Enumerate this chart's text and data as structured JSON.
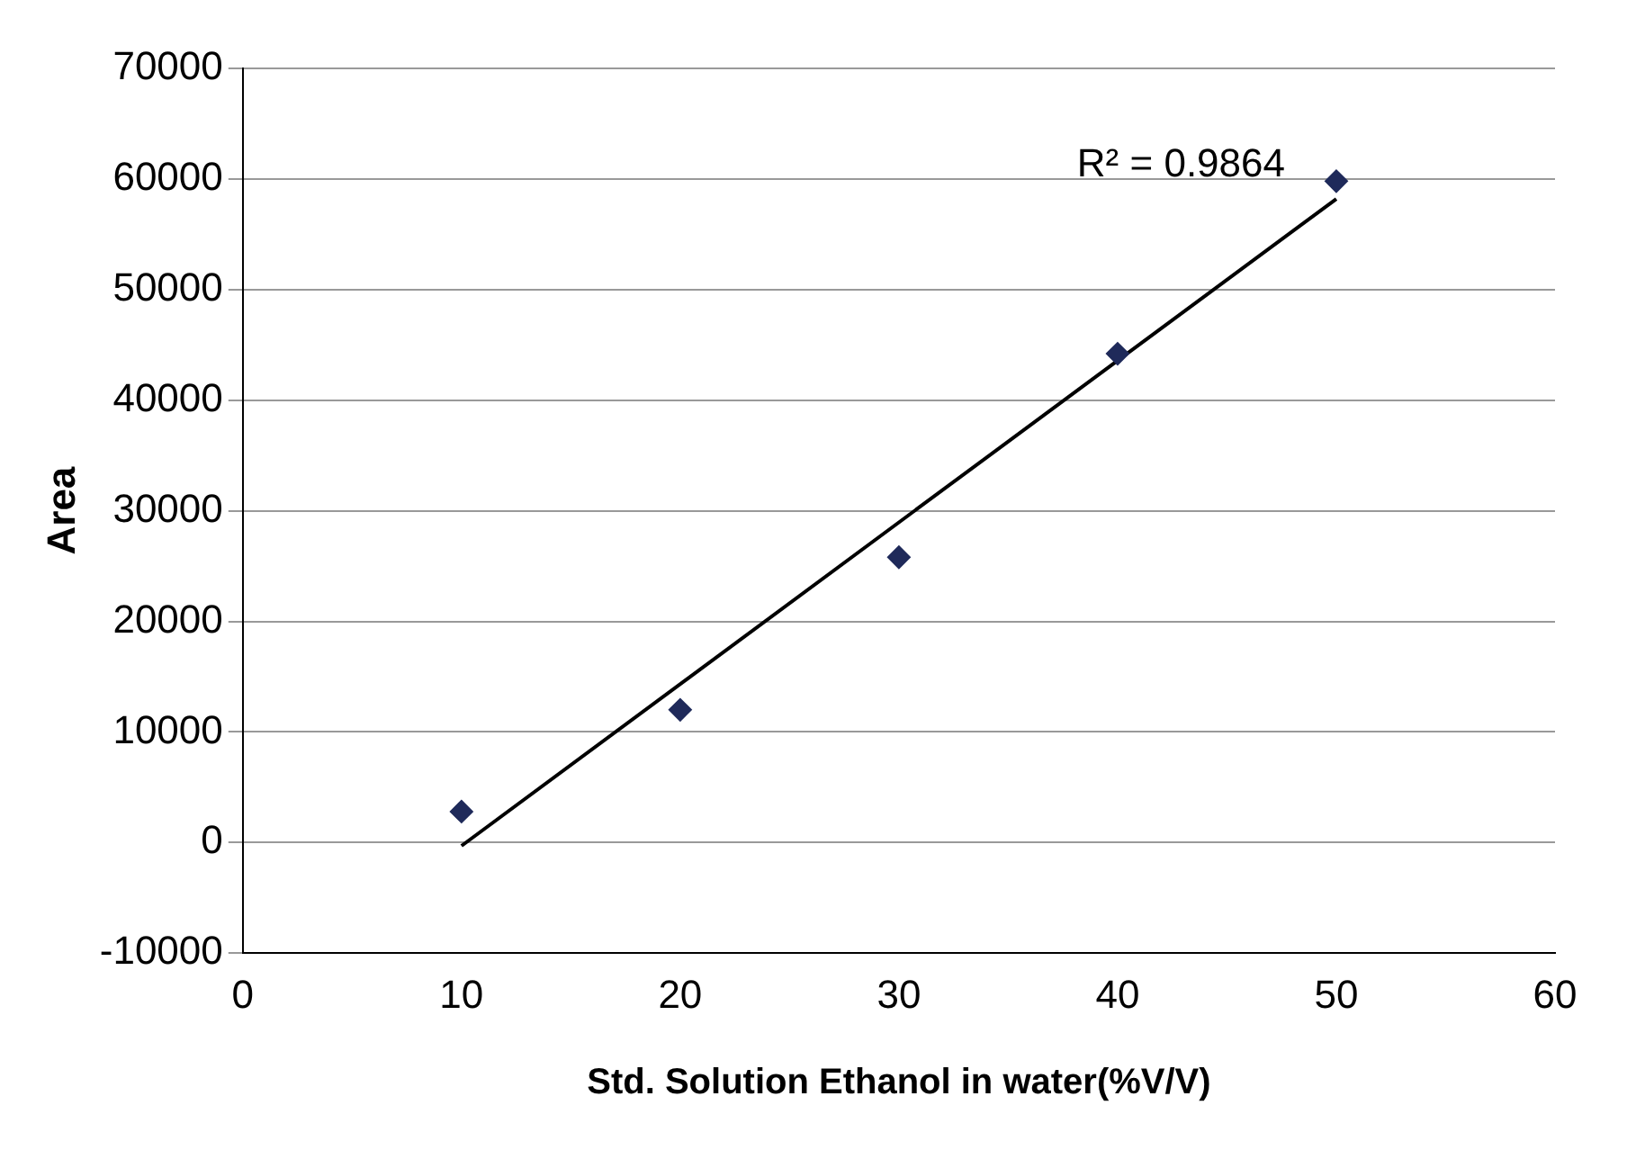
{
  "chart_data": {
    "type": "scatter",
    "xlabel": "Std. Solution Ethanol in water(%V/V)",
    "ylabel": "Area",
    "x": [
      10,
      20,
      30,
      40,
      50
    ],
    "series": [
      {
        "color": "#1f2a5a",
        "values": [
          2800,
          12000,
          25800,
          44200,
          59800
        ],
        "marker": "diamond"
      },
      {
        "type": "line",
        "color": "#000000",
        "x": [
          10,
          50
        ],
        "values": [
          -300,
          58200
        ],
        "marker": "none"
      }
    ],
    "annotations": [
      "R² = 0.9864"
    ],
    "xlim": [
      0,
      60
    ],
    "xticks": [
      0,
      10,
      20,
      30,
      40,
      50,
      60
    ],
    "ylim": [
      -10000,
      70000
    ],
    "yticks": [
      -10000,
      0,
      10000,
      20000,
      30000,
      40000,
      50000,
      60000,
      70000
    ],
    "grid": "y",
    "legend": false
  }
}
